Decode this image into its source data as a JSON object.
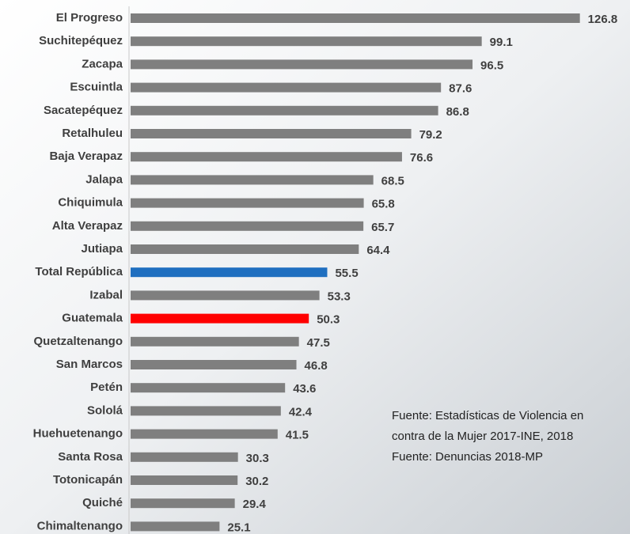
{
  "chart_data": {
    "type": "hbar",
    "categories": [
      "El Progreso",
      "Suchitepéquez",
      "Zacapa",
      "Escuintla",
      "Sacatepéquez",
      "Retalhuleu",
      "Baja Verapaz",
      "Jalapa",
      "Chiquimula",
      "Alta Verapaz",
      "Jutiapa",
      "Total República",
      "Izabal",
      "Guatemala",
      "Quetzaltenango",
      "San Marcos",
      "Petén",
      "Sololá",
      "Huehuetenango",
      "Santa Rosa",
      "Totonicapán",
      "Quiché",
      "Chimaltenango"
    ],
    "values": [
      126.8,
      99.1,
      96.5,
      87.6,
      86.8,
      79.2,
      76.6,
      68.5,
      65.8,
      65.7,
      64.4,
      55.5,
      53.3,
      50.3,
      47.5,
      46.8,
      43.6,
      42.4,
      41.5,
      30.3,
      30.2,
      29.4,
      25.1
    ],
    "colors": [
      "#7f7f7f",
      "#7f7f7f",
      "#7f7f7f",
      "#7f7f7f",
      "#7f7f7f",
      "#7f7f7f",
      "#7f7f7f",
      "#7f7f7f",
      "#7f7f7f",
      "#7f7f7f",
      "#7f7f7f",
      "#1f6fc0",
      "#7f7f7f",
      "#ff0000",
      "#7f7f7f",
      "#7f7f7f",
      "#7f7f7f",
      "#7f7f7f",
      "#7f7f7f",
      "#7f7f7f",
      "#7f7f7f",
      "#7f7f7f",
      "#7f7f7f"
    ],
    "xlim": [
      0,
      130
    ],
    "notes": [
      "Fuente: Estadísticas de Violencia en",
      "contra de la Mujer 2017-INE, 2018",
      "Fuente: Denuncias 2018-MP"
    ]
  }
}
